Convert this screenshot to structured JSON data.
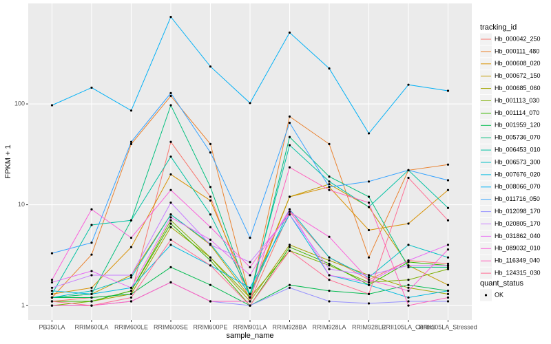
{
  "chart_data": {
    "type": "line",
    "xlabel": "sample_name",
    "ylabel": "FPKM + 1",
    "legend_title": "tracking_id",
    "categories": [
      "PB350LA",
      "RRIM600LA",
      "RRIM600LE",
      "RRIM600SE",
      "RRIM600PE",
      "RRIM901LA",
      "RRIM928BA",
      "RRIM928LA",
      "RRIM928LE",
      "RRII105LA_Control",
      "RRII105LA_Stressed"
    ],
    "log_y": true,
    "grid": true,
    "legend_position": "right",
    "ylim": [
      0.72,
      993
    ],
    "yticks": [
      1,
      10,
      100
    ],
    "point_color": "#000000",
    "shape_legend": {
      "title": "quant_status",
      "labels": [
        "OK"
      ]
    },
    "series": [
      {
        "name": "Hb_000042_250",
        "color": "#F8766D",
        "values": [
          1.1,
          1.2,
          1.3,
          42,
          12,
          1.1,
          8.5,
          3.0,
          1.8,
          2.8,
          2.6
        ]
      },
      {
        "name": "Hb_000111_480",
        "color": "#EA8331",
        "values": [
          1.2,
          3.2,
          40,
          120,
          40,
          1.2,
          75,
          40,
          3.0,
          22,
          25
        ]
      },
      {
        "name": "Hb_000608_020",
        "color": "#D89000",
        "values": [
          1.3,
          1.5,
          3.8,
          20,
          11,
          1.3,
          12,
          15,
          5.6,
          6.5,
          14
        ]
      },
      {
        "name": "Hb_000672_150",
        "color": "#C09B00",
        "values": [
          1.2,
          1.3,
          2.0,
          8,
          4,
          1.2,
          12,
          16,
          9.5,
          2.5,
          1.6
        ]
      },
      {
        "name": "Hb_000685_060",
        "color": "#A3A500",
        "values": [
          1.1,
          1.1,
          1.3,
          6,
          3,
          1.1,
          4,
          2.8,
          2.0,
          1.5,
          1.3
        ]
      },
      {
        "name": "Hb_001113_030",
        "color": "#7CAE00",
        "values": [
          1.0,
          1.1,
          1.4,
          7,
          3,
          1.2,
          3.5,
          2.5,
          1.7,
          1.8,
          2.3
        ]
      },
      {
        "name": "Hb_001114_070",
        "color": "#39B600",
        "values": [
          1.1,
          1.1,
          1.4,
          6.5,
          2.8,
          1.0,
          3.8,
          2.6,
          1.6,
          2.7,
          2.5
        ]
      },
      {
        "name": "Hb_001959_120",
        "color": "#00BB4E",
        "values": [
          1.2,
          1.2,
          1.3,
          2.4,
          1.6,
          1.0,
          1.6,
          1.4,
          1.3,
          1.6,
          1.4
        ]
      },
      {
        "name": "Hb_005736_070",
        "color": "#00BF7D",
        "values": [
          1.2,
          1.3,
          7,
          97,
          15,
          1.2,
          47,
          19,
          12,
          2.4,
          2.4
        ]
      },
      {
        "name": "Hb_006453_010",
        "color": "#00C1A3",
        "values": [
          1.3,
          6.3,
          7,
          30,
          8,
          1.3,
          39,
          17,
          9.5,
          22,
          9.3
        ]
      },
      {
        "name": "Hb_006573_300",
        "color": "#00BFC4",
        "values": [
          1.2,
          1.4,
          1.9,
          8,
          4.1,
          1.3,
          9,
          3.0,
          1.9,
          4.0,
          3.0
        ]
      },
      {
        "name": "Hb_007676_020",
        "color": "#00BAE0",
        "values": [
          1.4,
          1.3,
          1.5,
          4,
          2.5,
          1.5,
          8,
          2.0,
          1.6,
          1.2,
          1.4
        ]
      },
      {
        "name": "Hb_008066_070",
        "color": "#00B0F6",
        "values": [
          97,
          145,
          86,
          730,
          235,
          102,
          510,
          225,
          51,
          155,
          135
        ]
      },
      {
        "name": "Hb_011716_050",
        "color": "#35A2FF",
        "values": [
          3.3,
          4.2,
          42,
          128,
          33,
          4.7,
          65,
          15,
          17,
          22,
          17.5
        ]
      },
      {
        "name": "Hb_012098_170",
        "color": "#9590FF",
        "values": [
          1.0,
          1.0,
          1.1,
          1.7,
          1.1,
          1.0,
          1.5,
          1.1,
          1.05,
          1.1,
          1.1
        ]
      },
      {
        "name": "Hb_020805_170",
        "color": "#C77CFF",
        "values": [
          1.5,
          2.0,
          2.0,
          10.5,
          4,
          2.7,
          8,
          2.3,
          2.0,
          2.5,
          2.5
        ]
      },
      {
        "name": "Hb_031862_040",
        "color": "#E76BF3",
        "values": [
          1.7,
          2.2,
          1.5,
          7.5,
          4.5,
          2.0,
          9,
          2.0,
          1.7,
          2.8,
          4
        ]
      },
      {
        "name": "Hb_089032_010",
        "color": "#FA62DB",
        "values": [
          1.8,
          9,
          4.7,
          14,
          6,
          2.4,
          8.5,
          4.8,
          1.8,
          1.4,
          3.6
        ]
      },
      {
        "name": "Hb_116349_040",
        "color": "#FF62BC",
        "values": [
          1.0,
          1.0,
          1.1,
          1.7,
          1.1,
          1.1,
          23.5,
          14,
          10.5,
          1.0,
          1.2
        ]
      },
      {
        "name": "Hb_124315_030",
        "color": "#FF6C91",
        "values": [
          1.1,
          1.0,
          1.2,
          4.5,
          2.5,
          1.0,
          3.5,
          1.8,
          1.3,
          18.5,
          7
        ]
      }
    ]
  }
}
